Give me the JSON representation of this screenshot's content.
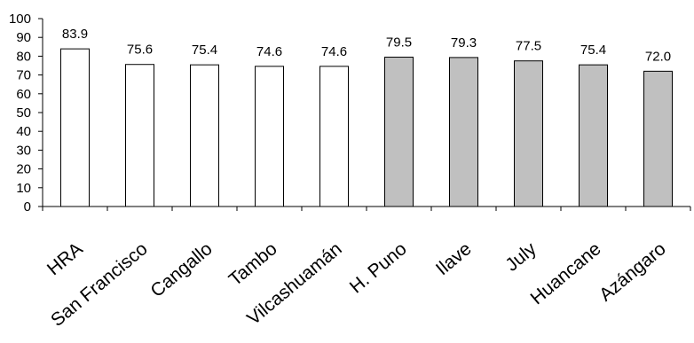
{
  "chart_data": {
    "type": "bar",
    "title": "",
    "xlabel": "",
    "ylabel": "",
    "ylim": [
      0,
      100
    ],
    "ytick_step": 10,
    "ytick_labels": [
      "0",
      "10",
      "20",
      "30",
      "40",
      "50",
      "60",
      "70",
      "80",
      "90",
      "100"
    ],
    "grid": false,
    "categories": [
      "HRA",
      "San Francisco",
      "Cangallo",
      "Tambo",
      "Vilcashuamán",
      "H. Puno",
      "Ilave",
      "July",
      "Huancane",
      "Azángaro"
    ],
    "values": [
      83.9,
      75.6,
      75.4,
      74.6,
      74.6,
      79.5,
      79.3,
      77.5,
      75.4,
      72.0
    ],
    "value_labels": [
      "83.9",
      "75.6",
      "75.4",
      "74.6",
      "74.6",
      "79.5",
      "79.3",
      "77.5",
      "75.4",
      "72.0"
    ],
    "bar_colors": [
      "#ffffff",
      "#ffffff",
      "#ffffff",
      "#ffffff",
      "#ffffff",
      "#c0c0c0",
      "#c0c0c0",
      "#c0c0c0",
      "#c0c0c0",
      "#c0c0c0"
    ],
    "bar_stroke": "#000000"
  }
}
